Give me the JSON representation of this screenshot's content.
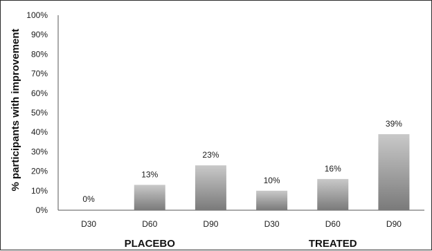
{
  "chart_data": {
    "type": "bar",
    "title": "",
    "xlabel": "",
    "ylabel": "% participants with improvement",
    "ylim": [
      0,
      100
    ],
    "y_ticks": [
      "0%",
      "10%",
      "20%",
      "30%",
      "40%",
      "50%",
      "60%",
      "70%",
      "80%",
      "90%",
      "100%"
    ],
    "categories": [
      "D30",
      "D60",
      "D90",
      "D30",
      "D60",
      "D90"
    ],
    "values": [
      0,
      13,
      23,
      10,
      16,
      39
    ],
    "data_labels": [
      "0%",
      "13%",
      "23%",
      "10%",
      "16%",
      "39%"
    ],
    "groups": [
      {
        "label": "PLACEBO",
        "start": 0,
        "end": 2
      },
      {
        "label": "TREATED",
        "start": 3,
        "end": 5
      }
    ],
    "grid": false,
    "legend": "none",
    "bar_gradient": [
      "#c9c9c9",
      "#7a7a7a"
    ]
  }
}
